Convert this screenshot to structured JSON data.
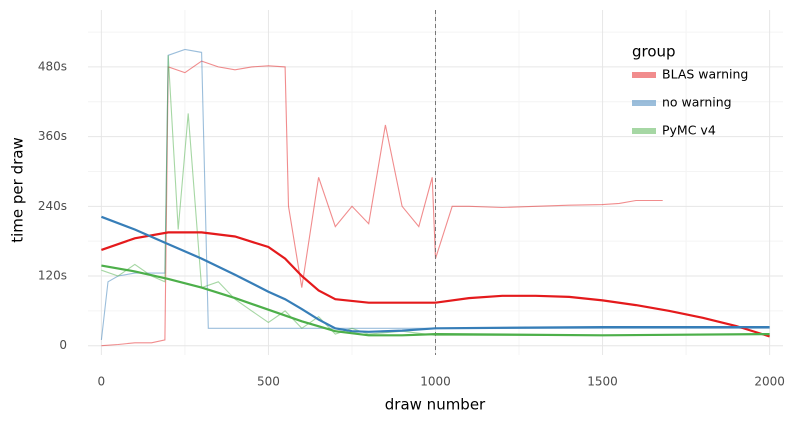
{
  "chart_data": {
    "type": "line",
    "x_label": "draw number",
    "y_label": "time per draw",
    "legend_title": "group",
    "xlim": [
      -40,
      2040
    ],
    "ylim": [
      -16,
      578
    ],
    "xticks": [
      0,
      500,
      1000,
      1500,
      2000
    ],
    "x_minor_ticks": [
      250,
      750,
      1250,
      1750
    ],
    "yticks": [
      0,
      {
        "value": 120,
        "label": "120s"
      },
      {
        "value": 240,
        "label": "240s"
      },
      {
        "value": 360,
        "label": "360s"
      },
      {
        "value": 480,
        "label": "480s"
      }
    ],
    "y_minor_ticks": [
      60,
      180,
      300,
      420,
      540
    ],
    "grid": true,
    "legend_position": "top-right",
    "vline": 1000,
    "series": [
      {
        "name": "BLAS warning",
        "color": "#e41a1c",
        "x": [
          0,
          50,
          100,
          150,
          190,
          200,
          250,
          300,
          350,
          400,
          450,
          500,
          550,
          560,
          600,
          650,
          700,
          750,
          800,
          850,
          900,
          950,
          990,
          1000,
          1050,
          1100,
          1200,
          1300,
          1400,
          1500,
          1550,
          1600,
          1650,
          1680
        ],
        "values": [
          0,
          2,
          5,
          5,
          10,
          480,
          470,
          490,
          480,
          475,
          480,
          482,
          480,
          240,
          100,
          290,
          205,
          240,
          210,
          380,
          240,
          205,
          290,
          150,
          240,
          240,
          238,
          240,
          242,
          243,
          245,
          250,
          250,
          250
        ],
        "trend": {
          "x": [
            0,
            100,
            200,
            300,
            400,
            500,
            550,
            600,
            650,
            700,
            800,
            1000,
            1100,
            1200,
            1300,
            1400,
            1500,
            1600,
            1700,
            1800,
            1900,
            2000
          ],
          "values": [
            165,
            185,
            195,
            195,
            188,
            170,
            150,
            120,
            95,
            80,
            74,
            74,
            82,
            86,
            86,
            84,
            78,
            70,
            60,
            48,
            34,
            16
          ]
        }
      },
      {
        "name": "no warning",
        "color": "#377eb8",
        "x": [
          0,
          20,
          50,
          100,
          150,
          190,
          200,
          250,
          300,
          320,
          400,
          500,
          700,
          1000,
          1500,
          2000
        ],
        "values": [
          10,
          110,
          120,
          125,
          125,
          125,
          500,
          510,
          505,
          30,
          30,
          30,
          30,
          30,
          30,
          30
        ],
        "trend": {
          "x": [
            0,
            100,
            200,
            300,
            400,
            500,
            550,
            600,
            650,
            700,
            750,
            800,
            900,
            1000,
            1500,
            2000
          ],
          "values": [
            222,
            200,
            175,
            150,
            122,
            93,
            80,
            63,
            45,
            30,
            25,
            24,
            26,
            30,
            32,
            32
          ]
        }
      },
      {
        "name": "PyMC v4",
        "color": "#4daf4a",
        "x": [
          0,
          50,
          100,
          150,
          190,
          200,
          230,
          260,
          300,
          350,
          400,
          450,
          500,
          550,
          600,
          650,
          700,
          750,
          800,
          900,
          1000,
          1500,
          2000
        ],
        "values": [
          130,
          120,
          140,
          120,
          110,
          500,
          200,
          400,
          100,
          110,
          80,
          60,
          40,
          60,
          30,
          50,
          20,
          30,
          20,
          25,
          18,
          18,
          20
        ],
        "trend": {
          "x": [
            0,
            100,
            200,
            300,
            400,
            500,
            600,
            700,
            800,
            900,
            1000,
            1500,
            2000
          ],
          "values": [
            138,
            128,
            115,
            100,
            82,
            62,
            42,
            25,
            18,
            18,
            20,
            18,
            20
          ]
        }
      }
    ]
  }
}
